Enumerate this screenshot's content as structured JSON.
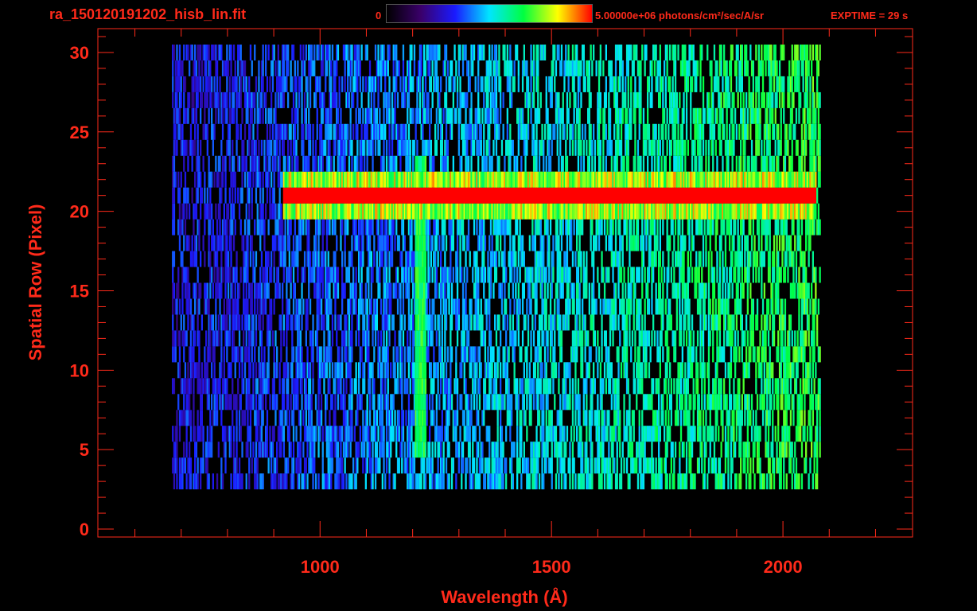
{
  "header": {
    "file_title": "ra_150120191202_hisb_lin.fit",
    "colorbar_min": "0",
    "colorbar_max": "5.00000e+06 photons/cm²/sec/A/sr",
    "exptime": "EXPTIME = 29 s"
  },
  "colors": {
    "text": "#ff2a1a",
    "background": "#000000",
    "colormap": [
      "#000000",
      "#3a006a",
      "#1a1aff",
      "#00e5ff",
      "#00ff40",
      "#ffff00",
      "#ff0000"
    ]
  },
  "chart_data": {
    "type": "heatmap",
    "title": "ra_150120191202_hisb_lin.fit",
    "xlabel": "Wavelength (Å)",
    "ylabel": "Spatial Row (Pixel)",
    "xlim": [
      520,
      2280
    ],
    "ylim": [
      -0.5,
      31.5
    ],
    "x_ticks": [
      1000,
      1500,
      2000
    ],
    "y_ticks": [
      0,
      5,
      10,
      15,
      20,
      25,
      30
    ],
    "colorbar": {
      "min": 0,
      "max": 5000000,
      "unit": "photons/cm²/sec/A/sr"
    },
    "features": [
      {
        "label": "bright continuum band",
        "rows": [
          20,
          22
        ],
        "x_range": [
          920,
          2070
        ],
        "level": 1.0
      },
      {
        "label": "Lyman-alpha line",
        "x": 1216,
        "rows": [
          5,
          23
        ],
        "level": 0.6
      }
    ],
    "detector_x_range": [
      680,
      2080
    ],
    "detector_rows": [
      3,
      30
    ]
  }
}
